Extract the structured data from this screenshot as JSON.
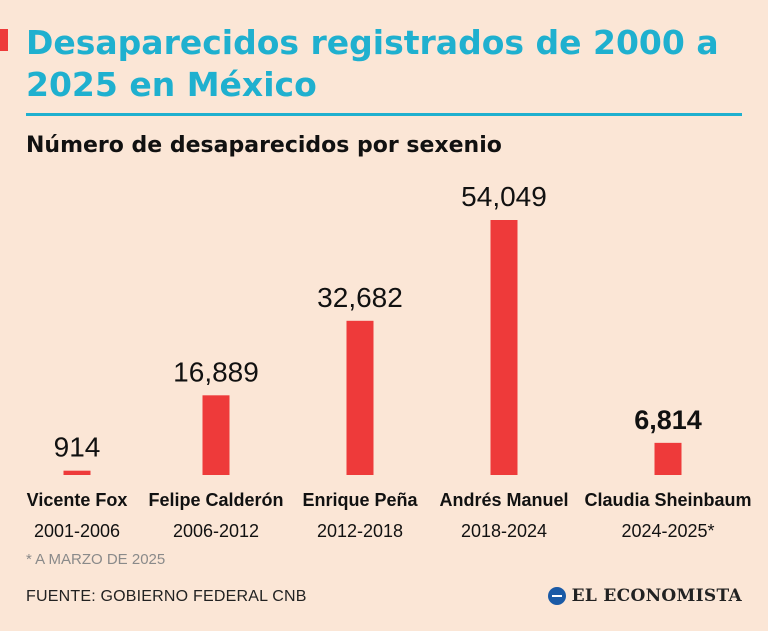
{
  "header": {
    "title": "Desaparecidos registrados de 2000 a 2025 en México",
    "subtitle": "Número de desaparecidos por sexenio"
  },
  "chart_data": {
    "type": "bar",
    "title": "Desaparecidos registrados de 2000 a 2025 en México",
    "subtitle": "Número de desaparecidos por sexenio",
    "categories": [
      "Vicente Fox",
      "Felipe Calderón",
      "Enrique Peña",
      "Andrés Manuel",
      "Claudia Sheinbaum"
    ],
    "periods": [
      "2001-2006",
      "2006-2012",
      "2012-2018",
      "2018-2024",
      "2024-2025*"
    ],
    "values": [
      914,
      16889,
      32682,
      54049,
      6814
    ],
    "value_labels": [
      "914",
      "16,889",
      "32,682",
      "54,049",
      "6,814"
    ],
    "highlighted": [
      false,
      false,
      false,
      false,
      true
    ],
    "ylim": [
      0,
      54049
    ],
    "grid": false,
    "bar_color": "#ee3a3a"
  },
  "footer": {
    "footnote": "* A MARZO DE 2025",
    "source": "FUENTE: GOBIERNO FEDERAL CNB",
    "logo_text": "EL ECONOMISTA"
  },
  "colors": {
    "background": "#fbe6d6",
    "accent": "#1fb0cf",
    "bar": "#ee3a3a",
    "text": "#111111"
  }
}
